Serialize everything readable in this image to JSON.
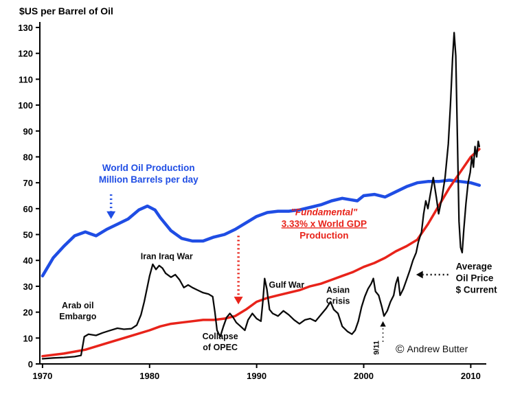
{
  "page": {
    "copyright_symbol": "©",
    "copyright_name": "Andrew Butter",
    "background": "#ffffff"
  },
  "chart_data": {
    "type": "line",
    "title": "$US per Barrel of Oil",
    "xlabel": "",
    "ylabel": "",
    "xlim": [
      1969.75,
      2011.45
    ],
    "ylim": [
      0,
      130
    ],
    "x_ticks": [
      1970,
      1980,
      1990,
      2000,
      2010
    ],
    "y_ticks": [
      0,
      10,
      20,
      30,
      40,
      50,
      60,
      70,
      80,
      90,
      100,
      110,
      120,
      130
    ],
    "grid": false,
    "legend_position": "inline-annotations",
    "axis_color": "#000000",
    "series": [
      {
        "id": "world-oil-production",
        "name": "World Oil Production (Million Barrels per day)",
        "color": "#1f4de4",
        "width": 4.5,
        "points": [
          [
            1970,
            34
          ],
          [
            1971,
            41
          ],
          [
            1972,
            45.5
          ],
          [
            1973,
            49.5
          ],
          [
            1974,
            51
          ],
          [
            1975,
            49.5
          ],
          [
            1976,
            52
          ],
          [
            1977,
            54
          ],
          [
            1978,
            56
          ],
          [
            1979,
            59.5
          ],
          [
            1979.8,
            61
          ],
          [
            1980.5,
            59.5
          ],
          [
            1981,
            56.5
          ],
          [
            1982,
            51.5
          ],
          [
            1983,
            48.5
          ],
          [
            1984,
            47.5
          ],
          [
            1985,
            47.5
          ],
          [
            1986,
            49
          ],
          [
            1987,
            50
          ],
          [
            1988,
            52
          ],
          [
            1989,
            54.5
          ],
          [
            1990,
            57
          ],
          [
            1991,
            58.5
          ],
          [
            1992,
            59
          ],
          [
            1993,
            59
          ],
          [
            1994,
            59.5
          ],
          [
            1995,
            60.5
          ],
          [
            1996,
            61.5
          ],
          [
            1997,
            63
          ],
          [
            1998,
            64
          ],
          [
            1998.7,
            63.5
          ],
          [
            1999.4,
            63
          ],
          [
            2000,
            65
          ],
          [
            2001,
            65.5
          ],
          [
            2002,
            64.5
          ],
          [
            2003,
            66.5
          ],
          [
            2004,
            68.5
          ],
          [
            2005,
            70
          ],
          [
            2006,
            70.5
          ],
          [
            2007,
            70.5
          ],
          [
            2008,
            71
          ],
          [
            2009,
            70.5
          ],
          [
            2010,
            70
          ],
          [
            2010.8,
            69
          ]
        ]
      },
      {
        "id": "fundamental-gdp",
        "name": "\"Fundamental\" 3.33% x World GDP Production",
        "color": "#e8231a",
        "width": 3.5,
        "points": [
          [
            1970,
            3
          ],
          [
            1972,
            4
          ],
          [
            1974,
            5.5
          ],
          [
            1976,
            8
          ],
          [
            1978,
            10.5
          ],
          [
            1980,
            13
          ],
          [
            1981,
            14.5
          ],
          [
            1982,
            15.5
          ],
          [
            1983,
            16
          ],
          [
            1984,
            16.5
          ],
          [
            1985,
            17
          ],
          [
            1986,
            17
          ],
          [
            1987,
            17.5
          ],
          [
            1988,
            18.5
          ],
          [
            1989,
            21
          ],
          [
            1990,
            24
          ],
          [
            1991,
            25.5
          ],
          [
            1992,
            26.5
          ],
          [
            1993,
            27.5
          ],
          [
            1994,
            28.5
          ],
          [
            1995,
            30
          ],
          [
            1996,
            31
          ],
          [
            1997,
            32.5
          ],
          [
            1998,
            34
          ],
          [
            1999,
            35.5
          ],
          [
            2000,
            37.5
          ],
          [
            2001,
            39
          ],
          [
            2002,
            41
          ],
          [
            2003,
            43.5
          ],
          [
            2004,
            45.5
          ],
          [
            2005,
            48
          ],
          [
            2006,
            54
          ],
          [
            2007,
            61
          ],
          [
            2008,
            68
          ],
          [
            2009,
            74
          ],
          [
            2010,
            80
          ],
          [
            2010.8,
            83
          ]
        ]
      },
      {
        "id": "average-oil-price",
        "name": "Average Oil Price ($ Current)",
        "color": "#0a0a0a",
        "width": 2.3,
        "points": [
          [
            1970,
            2
          ],
          [
            1971,
            2.3
          ],
          [
            1972,
            2.5
          ],
          [
            1973,
            2.8
          ],
          [
            1973.6,
            3.3
          ],
          [
            1973.9,
            10.5
          ],
          [
            1974.3,
            11.5
          ],
          [
            1975,
            11
          ],
          [
            1975.6,
            12
          ],
          [
            1976.2,
            12.8
          ],
          [
            1977,
            13.8
          ],
          [
            1977.6,
            13.4
          ],
          [
            1978.3,
            13.6
          ],
          [
            1978.8,
            15
          ],
          [
            1979.2,
            19
          ],
          [
            1979.5,
            24
          ],
          [
            1979.8,
            30
          ],
          [
            1980,
            34
          ],
          [
            1980.3,
            38.5
          ],
          [
            1980.6,
            36.5
          ],
          [
            1980.9,
            38
          ],
          [
            1981.2,
            37
          ],
          [
            1981.5,
            35
          ],
          [
            1982,
            33.5
          ],
          [
            1982.4,
            34.5
          ],
          [
            1982.8,
            32.5
          ],
          [
            1983.2,
            29.5
          ],
          [
            1983.6,
            30.5
          ],
          [
            1984,
            29.5
          ],
          [
            1984.5,
            28.5
          ],
          [
            1985,
            27.5
          ],
          [
            1985.5,
            27
          ],
          [
            1985.9,
            26
          ],
          [
            1986.1,
            20
          ],
          [
            1986.3,
            13
          ],
          [
            1986.6,
            10.5
          ],
          [
            1986.9,
            14.5
          ],
          [
            1987.2,
            18
          ],
          [
            1987.5,
            19.5
          ],
          [
            1987.8,
            18
          ],
          [
            1988.1,
            16
          ],
          [
            1988.5,
            14.5
          ],
          [
            1988.9,
            13
          ],
          [
            1989.2,
            17
          ],
          [
            1989.6,
            19.5
          ],
          [
            1990,
            17.5
          ],
          [
            1990.4,
            16.5
          ],
          [
            1990.6,
            25
          ],
          [
            1990.75,
            33
          ],
          [
            1990.95,
            29
          ],
          [
            1991.2,
            21
          ],
          [
            1991.5,
            19.5
          ],
          [
            1992,
            18.5
          ],
          [
            1992.5,
            20.5
          ],
          [
            1993,
            19
          ],
          [
            1993.5,
            17
          ],
          [
            1994,
            15.5
          ],
          [
            1994.5,
            17
          ],
          [
            1995,
            17.5
          ],
          [
            1995.5,
            16.5
          ],
          [
            1996,
            19
          ],
          [
            1996.5,
            21.5
          ],
          [
            1996.9,
            24
          ],
          [
            1997.2,
            21
          ],
          [
            1997.6,
            19.5
          ],
          [
            1998,
            14.5
          ],
          [
            1998.5,
            12.5
          ],
          [
            1998.9,
            11.5
          ],
          [
            1999.2,
            13
          ],
          [
            1999.5,
            16.5
          ],
          [
            1999.8,
            22
          ],
          [
            2000.1,
            26
          ],
          [
            2000.4,
            29
          ],
          [
            2000.7,
            31
          ],
          [
            2000.9,
            33
          ],
          [
            2001.1,
            28
          ],
          [
            2001.4,
            26.5
          ],
          [
            2001.7,
            22
          ],
          [
            2001.9,
            18.5
          ],
          [
            2002.2,
            20.5
          ],
          [
            2002.5,
            24
          ],
          [
            2002.8,
            26.5
          ],
          [
            2003,
            31
          ],
          [
            2003.2,
            33.5
          ],
          [
            2003.4,
            26.5
          ],
          [
            2003.7,
            29
          ],
          [
            2004,
            32.5
          ],
          [
            2004.3,
            36
          ],
          [
            2004.6,
            40
          ],
          [
            2004.9,
            43
          ],
          [
            2005.1,
            47
          ],
          [
            2005.4,
            51
          ],
          [
            2005.6,
            58
          ],
          [
            2005.8,
            63
          ],
          [
            2006,
            60
          ],
          [
            2006.2,
            65
          ],
          [
            2006.5,
            72
          ],
          [
            2006.8,
            64
          ],
          [
            2007,
            58
          ],
          [
            2007.3,
            64
          ],
          [
            2007.6,
            72
          ],
          [
            2007.9,
            85
          ],
          [
            2008.1,
            100
          ],
          [
            2008.3,
            118
          ],
          [
            2008.45,
            128
          ],
          [
            2008.6,
            119
          ],
          [
            2008.75,
            88
          ],
          [
            2008.9,
            55
          ],
          [
            2009.05,
            45
          ],
          [
            2009.2,
            43
          ],
          [
            2009.35,
            52
          ],
          [
            2009.55,
            62
          ],
          [
            2009.75,
            70
          ],
          [
            2009.95,
            74
          ],
          [
            2010.1,
            80
          ],
          [
            2010.25,
            76
          ],
          [
            2010.4,
            84
          ],
          [
            2010.55,
            80
          ],
          [
            2010.7,
            86
          ],
          [
            2010.8,
            84
          ]
        ]
      }
    ],
    "annotations": [
      {
        "id": "world-oil-production-label",
        "lines": [
          "World Oil Production",
          "Million Barrels per day"
        ],
        "color": "#1f4de4",
        "x": 1979.9,
        "y": 74.5,
        "anchor": "middle",
        "size": 13.5,
        "line_height": 17
      },
      {
        "id": "fundamental-label",
        "lines": [
          "\"Fundamental\"",
          "3.33% x World GDP",
          "Production"
        ],
        "color": "#e8231a",
        "x": 1996.3,
        "y": 57.5,
        "anchor": "middle",
        "size": 13.5,
        "line_height": 17,
        "italic": [
          0
        ],
        "underline": [
          1
        ]
      },
      {
        "id": "average-oil-price-label",
        "lines": [
          "Average",
          "Oil Price",
          "$ Current"
        ],
        "color": "#0a0a0a",
        "x": 2008.6,
        "y": 36.5,
        "anchor": "start",
        "size": 13.5,
        "line_height": 17
      },
      {
        "id": "arab-oil-embargo-label",
        "lines": [
          "Arab oil",
          "Embargo"
        ],
        "color": "#0a0a0a",
        "x": 1973.3,
        "y": 21.5,
        "anchor": "middle",
        "size": 12.5,
        "line_height": 16
      },
      {
        "id": "iran-iraq-war-label",
        "lines": [
          "Iran Iraq War"
        ],
        "color": "#0a0a0a",
        "x": 1981.6,
        "y": 40.5,
        "anchor": "middle",
        "size": 12.5,
        "line_height": 16
      },
      {
        "id": "collapse-of-opec-label",
        "lines": [
          "Collapse",
          "of OPEC"
        ],
        "color": "#0a0a0a",
        "x": 1986.6,
        "y": 9.5,
        "anchor": "middle",
        "size": 12.5,
        "line_height": 16
      },
      {
        "id": "gulf-war-label",
        "lines": [
          "Gulf War"
        ],
        "color": "#0a0a0a",
        "x": 1992.8,
        "y": 29.5,
        "anchor": "middle",
        "size": 12.5,
        "line_height": 16
      },
      {
        "id": "asian-crisis-label",
        "lines": [
          "Asian",
          "Crisis"
        ],
        "color": "#0a0a0a",
        "x": 1997.6,
        "y": 27.5,
        "anchor": "middle",
        "size": 12.5,
        "line_height": 16
      },
      {
        "id": "nine-eleven-label",
        "lines": [
          "9/11"
        ],
        "color": "#0a0a0a",
        "x": 2001.4,
        "y": 3.5,
        "anchor": "start",
        "size": 11,
        "rotate": -90
      }
    ],
    "arrows": [
      {
        "id": "world-oil-production-arrow",
        "color": "#1f4de4",
        "from": [
          1976.4,
          65.5
        ],
        "to": [
          1976.4,
          56
        ],
        "width": 3.5
      },
      {
        "id": "fundamental-arrow",
        "color": "#e8231a",
        "from": [
          1988.3,
          49.5
        ],
        "to": [
          1988.3,
          23
        ],
        "width": 3.5
      },
      {
        "id": "average-oil-price-arrow",
        "color": "#0a0a0a",
        "from": [
          2007.9,
          34.5
        ],
        "to": [
          2004.9,
          34.5
        ],
        "width": 2.5
      },
      {
        "id": "nine-eleven-arrow",
        "color": "#0a0a0a",
        "from": [
          2001.8,
          8.5
        ],
        "to": [
          2001.8,
          16.5
        ],
        "width": 1.2
      }
    ]
  }
}
